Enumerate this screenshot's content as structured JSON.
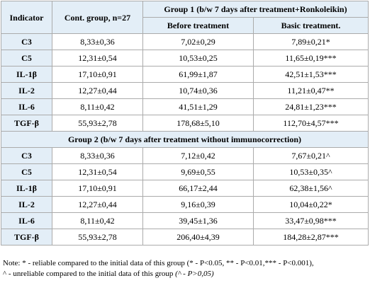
{
  "header": {
    "indicator": "Indicator",
    "control": "Cont. group, n=27",
    "group1_title": "Group 1 (b/w 7 days after treatment+Ronkoleikin)",
    "before": "Before treatment",
    "basic": "Basic treatment."
  },
  "group1_rows": [
    {
      "indicator": "C3",
      "control": "8,33±0,36",
      "before": "7,02±0,29",
      "after": "7,89±0,21*"
    },
    {
      "indicator": "C5",
      "control": "12,31±0,54",
      "before": "10,53±0,25",
      "after": "11,65±0,19***"
    },
    {
      "indicator": "IL-1β",
      "control": "17,10±0,91",
      "before": "61,99±1,87",
      "after": "42,51±1,53***"
    },
    {
      "indicator": "IL-2",
      "control": "12,27±0,44",
      "before": "10,74±0,36",
      "after": "11,21±0,47**"
    },
    {
      "indicator": "IL-6",
      "control": "8,11±0,42",
      "before": "41,51±1,29",
      "after": "24,81±1,23***"
    },
    {
      "indicator": "TGF-β",
      "control": "55,93±2,78",
      "before": "178,68±5,10",
      "after": "112,70±4,57***"
    }
  ],
  "group2_title": "Group 2 (b/w 7 days after treatment without immunocorrection)",
  "group2_rows": [
    {
      "indicator": "C3",
      "control": "8,33±0,36",
      "before": "7,12±0,42",
      "after": "7,67±0,21^"
    },
    {
      "indicator": "C5",
      "control": "12,31±0,54",
      "before": "9,69±0,55",
      "after": "10,53±0,35^"
    },
    {
      "indicator": "IL-1β",
      "control": "17,10±0,91",
      "before": "66,17±2,44",
      "after": "62,38±1,56^"
    },
    {
      "indicator": "IL-2",
      "control": "12,27±0,44",
      "before": "9,16±0,39",
      "after": "10,04±0,22*"
    },
    {
      "indicator": "IL-6",
      "control": "8,11±0,42",
      "before": "39,45±1,36",
      "after": "33,47±0,98***"
    },
    {
      "indicator": "TGF-β",
      "control": "55,93±2,78",
      "before": "206,40±4,39",
      "after": "184,28±2,87***"
    }
  ],
  "note": {
    "line1": "Note: * - reliable compared to the initial data of this group (* - P<0.05, ** - P<0.01,*** - P<0.001),",
    "line2_prefix": "^ - unreliable compared to the initial data of this group ",
    "line2_italic": "(^ - P>0,05)"
  }
}
